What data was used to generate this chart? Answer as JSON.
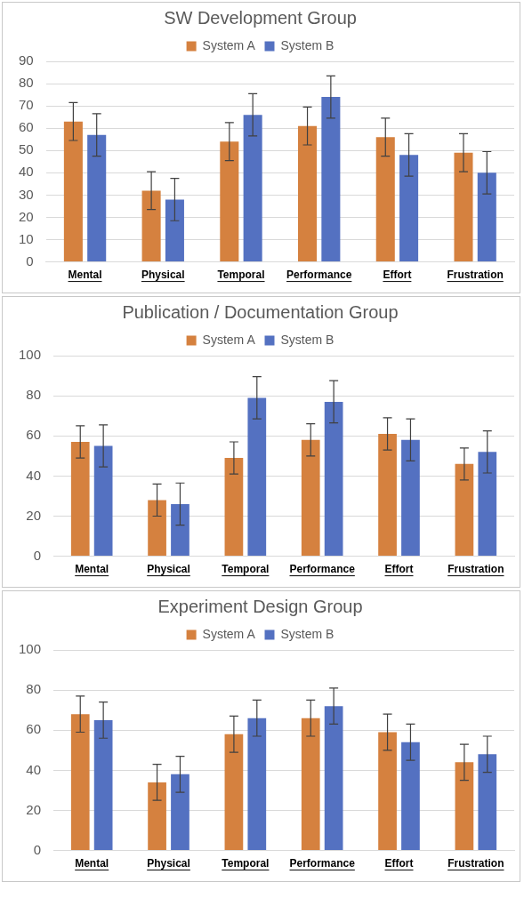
{
  "chart_data": [
    {
      "type": "bar",
      "title": "SW Development Group",
      "categories": [
        "Mental",
        "Physical",
        "Temporal",
        "Performance",
        "Effort",
        "Frustration"
      ],
      "series": [
        {
          "name": "System A",
          "color": "#d5813f",
          "values": [
            63,
            32,
            54,
            61,
            56,
            49
          ],
          "errors": [
            8.5,
            8.5,
            8.5,
            8.5,
            8.5,
            8.5
          ]
        },
        {
          "name": "System B",
          "color": "#5471c1",
          "values": [
            57,
            28,
            66,
            74,
            48,
            40
          ],
          "errors": [
            9.5,
            9.5,
            9.5,
            9.5,
            9.5,
            9.5
          ]
        }
      ],
      "ylim": [
        0,
        90
      ],
      "yticks": [
        0,
        10,
        20,
        30,
        40,
        50,
        60,
        70,
        80,
        90
      ],
      "grid": "y",
      "legend": "top"
    },
    {
      "type": "bar",
      "title": "Publication / Documentation Group",
      "categories": [
        "Mental",
        "Physical",
        "Temporal",
        "Performance",
        "Effort",
        "Frustration"
      ],
      "series": [
        {
          "name": "System A",
          "color": "#d5813f",
          "values": [
            57,
            28,
            49,
            58,
            61,
            46
          ],
          "errors": [
            8,
            8,
            8,
            8,
            8,
            8
          ]
        },
        {
          "name": "System B",
          "color": "#5471c1",
          "values": [
            55,
            26,
            79,
            77,
            58,
            52
          ],
          "errors": [
            10.5,
            10.5,
            10.5,
            10.5,
            10.5,
            10.5
          ]
        }
      ],
      "ylim": [
        0,
        100
      ],
      "yticks": [
        0,
        20,
        40,
        60,
        80,
        100
      ],
      "grid": "y",
      "legend": "top"
    },
    {
      "type": "bar",
      "title": "Experiment Design Group",
      "categories": [
        "Mental",
        "Physical",
        "Temporal",
        "Performance",
        "Effort",
        "Frustration"
      ],
      "series": [
        {
          "name": "System A",
          "color": "#d5813f",
          "values": [
            68,
            34,
            58,
            66,
            59,
            44
          ],
          "errors": [
            9,
            9,
            9,
            9,
            9,
            9
          ]
        },
        {
          "name": "System B",
          "color": "#5471c1",
          "values": [
            65,
            38,
            66,
            72,
            54,
            48
          ],
          "errors": [
            9,
            9,
            9,
            9,
            9,
            9
          ]
        }
      ],
      "ylim": [
        0,
        100
      ],
      "yticks": [
        0,
        20,
        40,
        60,
        80,
        100
      ],
      "grid": "y",
      "legend": "top"
    }
  ]
}
